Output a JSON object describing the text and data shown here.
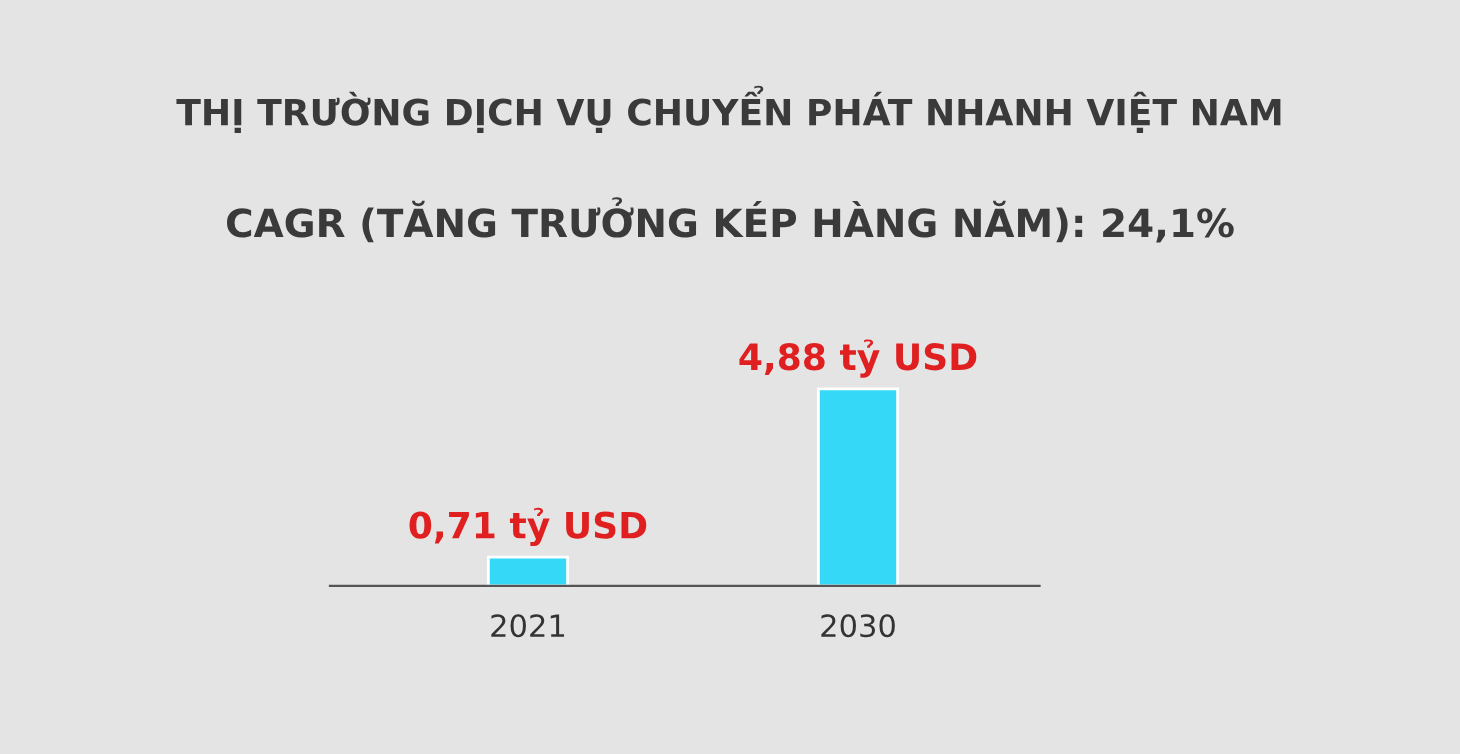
{
  "chart_data": {
    "type": "bar",
    "title": "THỊ TRƯỜNG DỊCH VỤ CHUYỂN PHÁT NHANH VIỆT NAM",
    "subtitle": "CAGR (TĂNG TRƯỞNG KÉP HÀNG NĂM): 24,1%",
    "categories": [
      "2021",
      "2030"
    ],
    "values": [
      0.71,
      4.88
    ],
    "value_labels": [
      "0,71 tỷ USD",
      "4,88 tỷ USD"
    ],
    "color": "#35d8f6",
    "grid": false,
    "legend": false
  }
}
